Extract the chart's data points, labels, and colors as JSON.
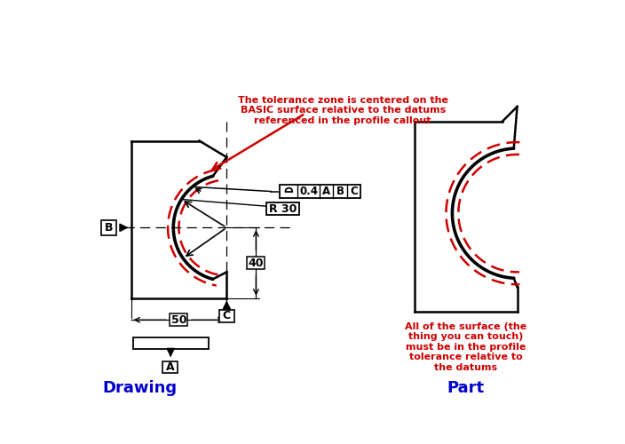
{
  "bg_color": "#ffffff",
  "title_text": "The tolerance zone is centered on the\nBASIC surface relative to the datums\nreferenced in the profile callout",
  "annotation_color": "#cc0000",
  "drawing_label": "Drawing",
  "part_label": "Part",
  "label_color": "#0000cc",
  "part_note": "All of the surface (the\nthing you can touch)\nmust be in the profile\ntolerance relative to\nthe datums",
  "part_note_color": "#cc0000",
  "fcf_value": "0.4",
  "fcf_datums": [
    "A",
    "B",
    "C"
  ],
  "radius_label": "R 30",
  "dim_40": "40",
  "dim_50": "50",
  "datum_a_label": "A",
  "datum_b_label": "B",
  "datum_c_label": "C"
}
